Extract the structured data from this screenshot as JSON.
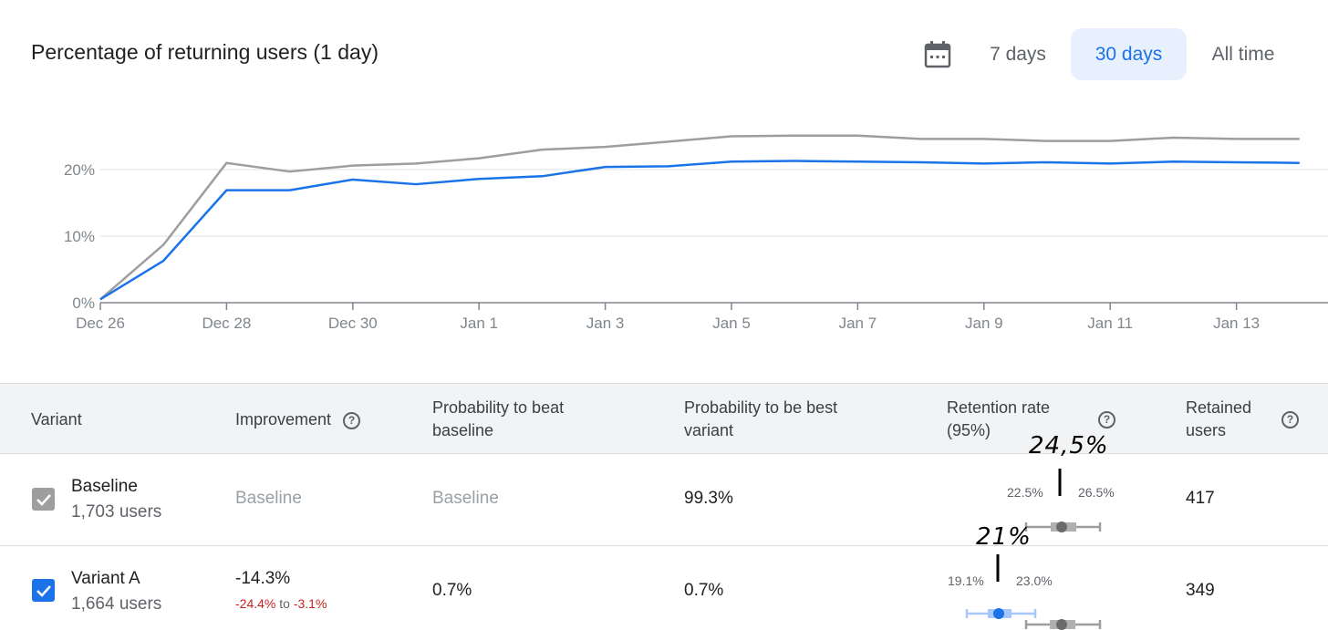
{
  "title": "Percentage of returning users (1 day)",
  "range_selector": {
    "calendar_icon": "calendar-icon",
    "options": [
      "7 days",
      "30 days",
      "All time"
    ],
    "selected": "30 days"
  },
  "colors": {
    "baseline": "#9e9e9e",
    "variant_a": "#1a73e8",
    "accent_bg": "#e8f0fe",
    "negative": "#c5221f"
  },
  "chart_data": {
    "type": "line",
    "x": [
      "Dec 26",
      "Dec 27",
      "Dec 28",
      "Dec 29",
      "Dec 30",
      "Dec 31",
      "Jan 1",
      "Jan 2",
      "Jan 3",
      "Jan 4",
      "Jan 5",
      "Jan 6",
      "Jan 7",
      "Jan 8",
      "Jan 9",
      "Jan 10",
      "Jan 11",
      "Jan 12",
      "Jan 13",
      "Jan 14"
    ],
    "x_tick_labels": [
      "Dec 26",
      "Dec 28",
      "Dec 30",
      "Jan 1",
      "Jan 3",
      "Jan 5",
      "Jan 7",
      "Jan 9",
      "Jan 11",
      "Jan 13"
    ],
    "y_tick_labels": [
      "0%",
      "10%",
      "20%"
    ],
    "ylim": [
      0,
      27
    ],
    "grid": true,
    "series": [
      {
        "color": "#9e9e9e",
        "values": [
          0.5,
          8.7,
          21.0,
          19.7,
          20.6,
          20.9,
          21.7,
          23.0,
          23.4,
          24.2,
          25.0,
          25.1,
          25.1,
          24.6,
          24.6,
          24.3,
          24.3,
          24.8,
          24.6,
          24.6
        ]
      },
      {
        "color": "#1a73e8",
        "values": [
          0.5,
          6.3,
          16.9,
          16.9,
          18.5,
          17.8,
          18.6,
          19.0,
          20.4,
          20.5,
          21.2,
          21.3,
          21.2,
          21.1,
          20.9,
          21.1,
          20.9,
          21.2,
          21.1,
          21.0
        ]
      }
    ]
  },
  "table": {
    "headers": {
      "variant": "Variant",
      "improvement": "Improvement",
      "prob_beat_1": "Probability to beat",
      "prob_beat_2": "baseline",
      "prob_best_1": "Probability to be best",
      "prob_best_2": "variant",
      "retention_1": "Retention rate",
      "retention_2": "(95%)",
      "retained_1": "Retained",
      "retained_2": "users"
    },
    "rows": [
      {
        "name": "Baseline",
        "users": "1,703 users",
        "improvement": "Baseline",
        "prob_beat": "Baseline",
        "prob_best": "99.3%",
        "ci_low": "22.5%",
        "ci_high": "26.5%",
        "retained": "417",
        "checked": true
      },
      {
        "name": "Variant A",
        "users": "1,664 users",
        "improvement": "-14.3%",
        "improvement_low": "-24.4%",
        "improvement_to": "to",
        "improvement_high": "-3.1%",
        "prob_beat": "0.7%",
        "prob_best": "0.7%",
        "ci_low": "19.1%",
        "ci_high": "23.0%",
        "retained": "349",
        "checked": true
      }
    ]
  },
  "annotations": {
    "baseline_point": "24,5%",
    "variant_point": "21%"
  }
}
